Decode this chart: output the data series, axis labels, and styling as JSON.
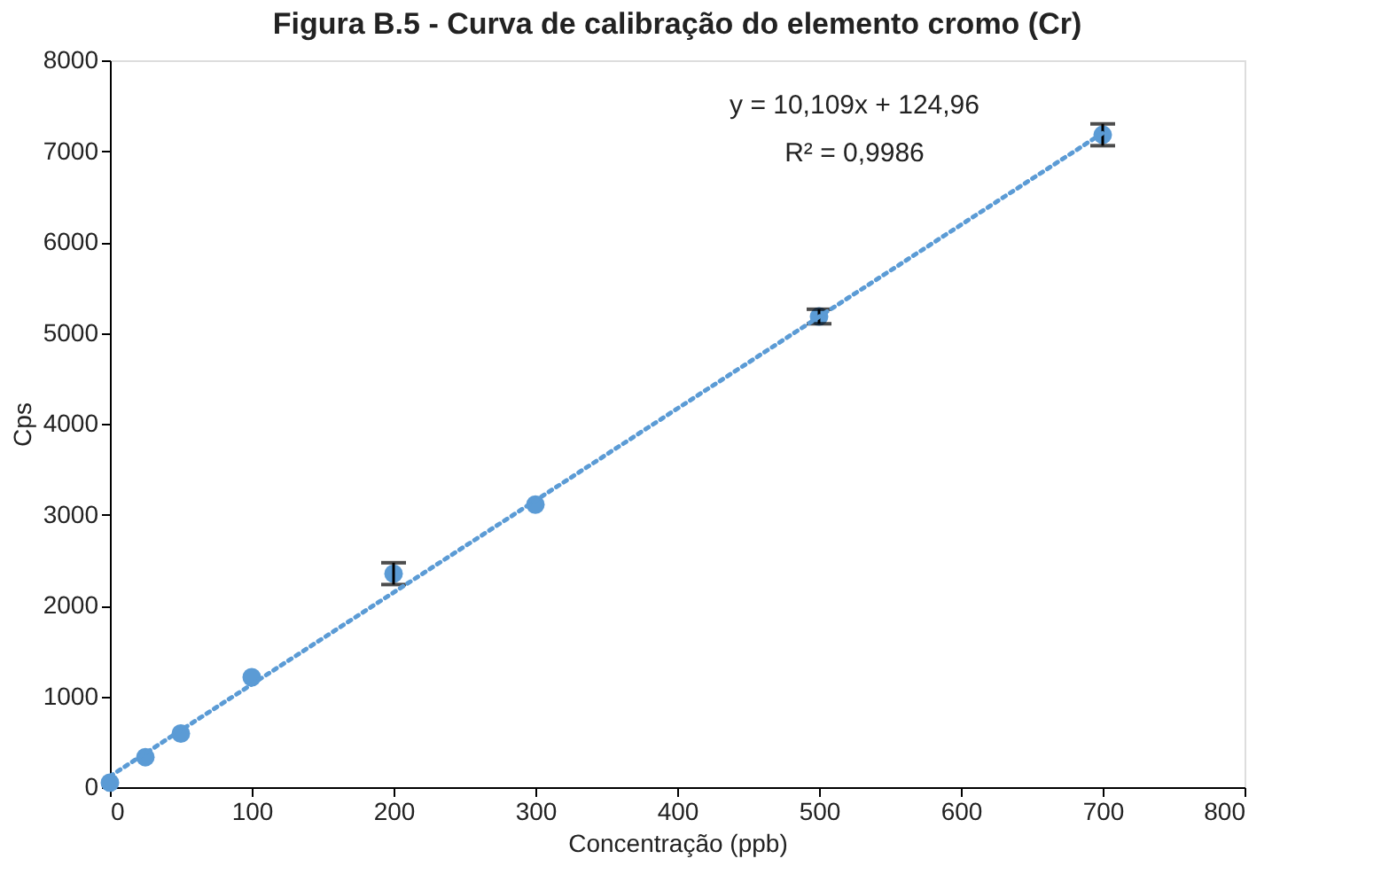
{
  "chart_data": {
    "type": "scatter",
    "title": "Figura B.5 - Curva de calibração do elemento cromo (Cr)",
    "xlabel": "Concentração (ppb)",
    "ylabel": "Cps",
    "xlim": [
      0,
      800
    ],
    "xticks": [
      0,
      100,
      200,
      300,
      400,
      500,
      600,
      700,
      800
    ],
    "ylim": [
      0,
      8000
    ],
    "yticks": [
      0,
      1000,
      2000,
      3000,
      4000,
      5000,
      6000,
      7000,
      8000
    ],
    "grid": false,
    "series": [
      {
        "color": "#5b9bd5",
        "marker": "circle",
        "x": [
          0,
          25,
          50,
          100,
          200,
          300,
          500,
          700
        ],
        "values": [
          50,
          330,
          590,
          1210,
          2350,
          3110,
          5180,
          7180
        ],
        "errors": [
          null,
          null,
          null,
          null,
          120,
          null,
          80,
          120
        ]
      },
      {
        "type": "line",
        "color": "#5b9bd5",
        "line_style": "dotted",
        "x": [
          0,
          700
        ],
        "values": [
          120,
          7200
        ]
      }
    ],
    "annotations": [
      "y = 10,109x + 124,96",
      "R² = 0,9986"
    ]
  }
}
